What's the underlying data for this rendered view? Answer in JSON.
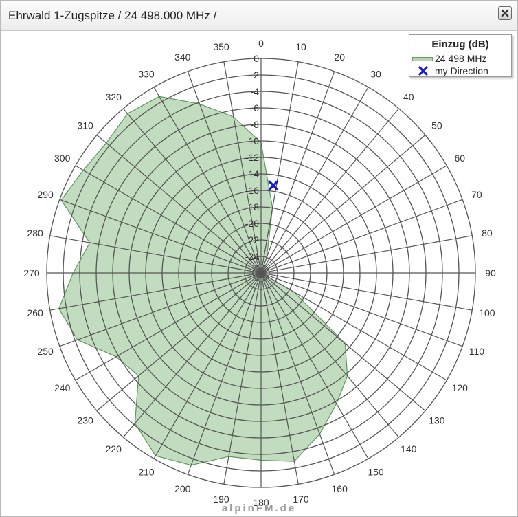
{
  "window": {
    "title": "Ehrwald 1-Zugspitze / 24 498.000 MHz /"
  },
  "watermark": "alpinFM.de",
  "legend": {
    "title": "Einzug (dB)",
    "series_label": "24 498 MHz",
    "marker_label": "my Direction"
  },
  "colors": {
    "area_fill": "#8fbf8b",
    "area_stroke": "#5c9a58",
    "grid": "#555555",
    "marker": "#1a1ad6"
  },
  "chart_data": {
    "type": "polar-area",
    "angle_ticks": [
      "0",
      "10",
      "20",
      "30",
      "40",
      "50",
      "60",
      "70",
      "80",
      "90",
      "100",
      "110",
      "120",
      "130",
      "140",
      "150",
      "160",
      "170",
      "180",
      "190",
      "200",
      "210",
      "220",
      "230",
      "240",
      "250",
      "260",
      "270",
      "280",
      "290",
      "300",
      "310",
      "320",
      "330",
      "340",
      "350"
    ],
    "radial_ticks": [
      "0",
      "-2",
      "-4",
      "-6",
      "-8",
      "-10",
      "-12",
      "-14",
      "-16",
      "-18",
      "-20",
      "-22",
      "-24"
    ],
    "radial_range": [
      -26,
      0
    ],
    "series": [
      {
        "name": "24 498 MHz",
        "angles": [
          0,
          10,
          20,
          30,
          40,
          50,
          60,
          70,
          80,
          90,
          100,
          110,
          120,
          130,
          140,
          150,
          160,
          170,
          180,
          190,
          200,
          210,
          220,
          230,
          240,
          250,
          260,
          270,
          280,
          290,
          300,
          310,
          320,
          330,
          340,
          350
        ],
        "values": [
          -10.2,
          -18.0,
          -24.0,
          -26.0,
          -26.0,
          -26.0,
          -26.0,
          -26.0,
          -26.0,
          -26.0,
          -26.0,
          -26.0,
          -21.4,
          -12.7,
          -9.7,
          -7.7,
          -5.2,
          -2.8,
          -3.3,
          -3.4,
          -1.2,
          -0.4,
          -2.2,
          -6.6,
          -5.7,
          -2.3,
          -1.1,
          -3.2,
          -4.9,
          -0.2,
          -1.1,
          -1.5,
          -0.8,
          -1.3,
          -4.2,
          -6.8
        ]
      }
    ],
    "marker": {
      "name": "my Direction",
      "angle": 8,
      "value": -15.3
    }
  }
}
